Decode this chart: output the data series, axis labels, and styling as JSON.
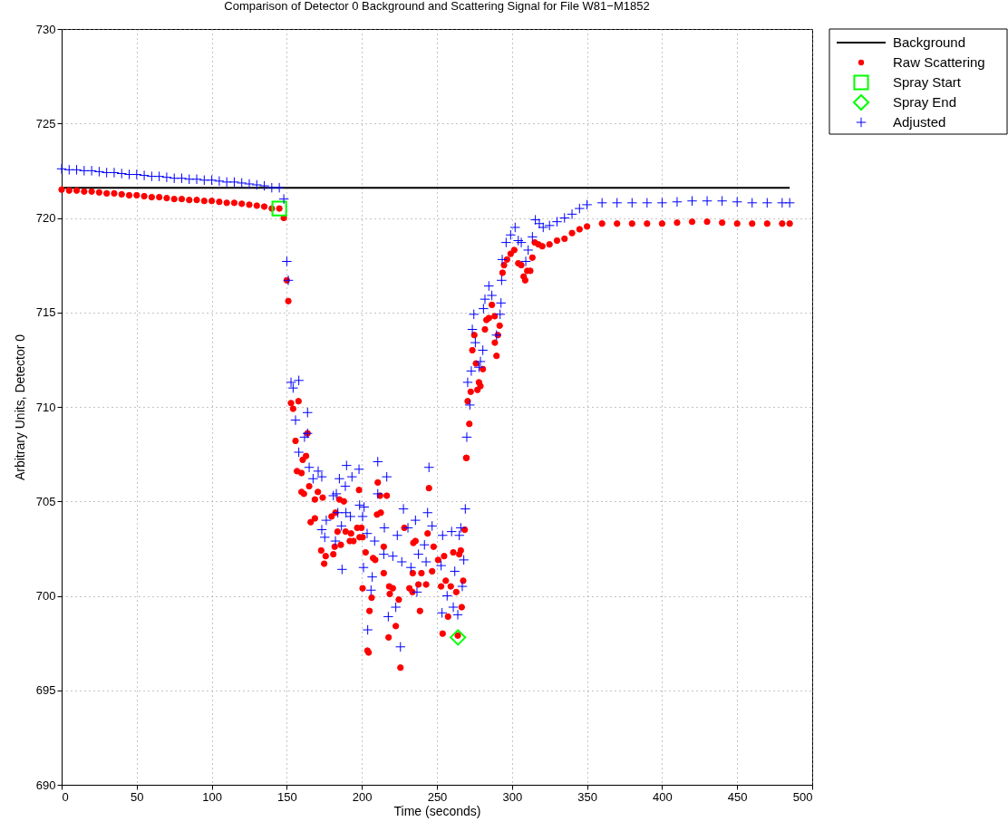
{
  "chart_data": {
    "type": "scatter",
    "title": "Comparison of Detector 0 Background and Scattering Signal for File W81−M1852",
    "xlabel": "Time (seconds)",
    "ylabel": "Arbitrary Units, Detector 0",
    "xlim": [
      0,
      500
    ],
    "xticks": [
      0,
      50,
      100,
      150,
      200,
      250,
      300,
      350,
      400,
      450,
      500
    ],
    "ylim": [
      690,
      730
    ],
    "yticks": [
      690,
      695,
      700,
      705,
      710,
      715,
      720,
      725,
      730
    ],
    "grid": true,
    "legend": "top right",
    "series": [
      {
        "name": "Background",
        "type": "line",
        "color": "#000000",
        "marker": "none",
        "line_style": "solid",
        "x": [
          0,
          485
        ],
        "values": [
          721.6,
          721.6
        ]
      },
      {
        "name": "Raw Scattering",
        "color": "#ff0000",
        "marker": "circle",
        "x": [
          0,
          5,
          10,
          15,
          20,
          25,
          30,
          35,
          40,
          45,
          50,
          55,
          60,
          65,
          70,
          75,
          80,
          85,
          90,
          95,
          100,
          105,
          110,
          115,
          120,
          125,
          130,
          135,
          140,
          145,
          148,
          150,
          151,
          152.8,
          157.8,
          154.2,
          155.8,
          163.8,
          162.8,
          160.6,
          156.8,
          159.8,
          164.9,
          159.8,
          161.4,
          170.7,
          168.7,
          173.9,
          165.9,
          168.7,
          172.9,
          175.9,
          174.9,
          181.0,
          181.9,
          186.0,
          183.8,
          189.2,
          192.0,
          194.4,
          192.8,
          196.9,
          198.5,
          200.5,
          199.7,
          198.1,
          185.0,
          188.0,
          179.8,
          182.4,
          210.6,
          212.1,
          216.6,
          210.1,
          212.6,
          202.5,
          207.5,
          208.9,
          214.6,
          200.5,
          206.5,
          205.1,
          203.7,
          204.5,
          214.6,
          218.2,
          220.6,
          218.6,
          222.6,
          217.8,
          224.6,
          225.7,
          228.3,
          234.3,
          235.7,
          233.9,
          231.7,
          233.7,
          237.7,
          239.7,
          242.8,
          238.7,
          244.7,
          243.8,
          246.8,
          247.8,
          250.8,
          252.8,
          254.8,
          255.9,
          259.2,
          257.4,
          253.8,
          260.9,
          262.9,
          266.5,
          264.9,
          267.5,
          265.9,
          268.5,
          263.9,
          269.7,
          271.6,
          270.5,
          272.5,
          277.0,
          278.0,
          279.0,
          280.6,
          269.5,
          276.0,
          273.6,
          274.9,
          289.7,
          288.6,
          290.6,
          291.8,
          288.5,
          282.0,
          283.0,
          284.6,
          286.6,
          293.7,
          294.7,
          296.7,
          299.1,
          301.5,
          304.2,
          306.2,
          307.8,
          308.8,
          310.2,
          312.2,
          313.6,
          315.2,
          317.6,
          320.2,
          325,
          330,
          335,
          340,
          345,
          350,
          360,
          370,
          380,
          390,
          400,
          410,
          420,
          430,
          440,
          450,
          460,
          470,
          480,
          485
        ],
        "values": [
          721.5,
          721.45,
          721.45,
          721.4,
          721.4,
          721.35,
          721.3,
          721.3,
          721.25,
          721.2,
          721.2,
          721.15,
          721.1,
          721.1,
          721.05,
          721.0,
          721.0,
          720.95,
          720.95,
          720.9,
          720.9,
          720.85,
          720.8,
          720.8,
          720.75,
          720.7,
          720.65,
          720.6,
          720.5,
          720.5,
          720.0,
          716.7,
          715.6,
          710.2,
          710.3,
          709.9,
          708.2,
          708.6,
          707.4,
          707.2,
          706.6,
          706.5,
          705.8,
          705.5,
          705.4,
          705.5,
          705.1,
          705.2,
          703.9,
          704.1,
          702.4,
          702.1,
          701.7,
          702.2,
          702.6,
          702.7,
          703.4,
          703.4,
          702.9,
          702.9,
          703.3,
          703.6,
          703.1,
          703.1,
          703.6,
          705.6,
          705.1,
          705.0,
          704.2,
          704.4,
          706.0,
          705.3,
          705.3,
          704.3,
          704.4,
          702.3,
          702.0,
          701.9,
          702.6,
          700.4,
          699.9,
          699.2,
          697.1,
          697.0,
          701.2,
          700.5,
          700.4,
          700.1,
          698.4,
          697.8,
          699.8,
          696.2,
          703.6,
          702.8,
          702.9,
          701.2,
          700.4,
          700.2,
          700.6,
          701.2,
          700.6,
          699.2,
          705.7,
          703.3,
          701.3,
          702.6,
          701.9,
          700.5,
          702.1,
          700.8,
          700.5,
          698.9,
          698.0,
          702.3,
          700.2,
          699.4,
          702.2,
          700.8,
          702.4,
          703.5,
          697.9,
          707.3,
          709.1,
          710.3,
          710.8,
          710.9,
          711.3,
          711.1,
          712.0,
          707.3,
          712.3,
          713.0,
          713.8,
          712.7,
          713.4,
          713.8,
          714.3,
          714.8,
          714.1,
          714.6,
          714.7,
          715.4,
          717.1,
          717.5,
          717.8,
          718.1,
          718.3,
          717.6,
          717.5,
          716.9,
          716.7,
          717.2,
          717.2,
          717.9,
          718.7,
          718.6,
          718.5,
          718.6,
          718.8,
          718.9,
          719.2,
          719.4,
          719.55,
          719.7,
          719.7,
          719.7,
          719.7,
          719.7,
          719.75,
          719.8,
          719.8,
          719.75,
          719.7,
          719.7,
          719.7,
          719.7,
          719.7
        ]
      },
      {
        "name": "Spray Start",
        "color": "#00ff00",
        "marker": "square",
        "x": [
          145
        ],
        "values": [
          720.5
        ]
      },
      {
        "name": "Spray End",
        "color": "#00ff00",
        "marker": "diamond",
        "x": [
          264
        ],
        "values": [
          697.8
        ]
      },
      {
        "name": "Adjusted",
        "color": "#0000ff",
        "marker": "cross",
        "x": [
          0,
          5,
          10,
          15,
          20,
          25,
          30,
          35,
          40,
          45,
          50,
          55,
          60,
          65,
          70,
          75,
          80,
          85,
          90,
          95,
          100,
          105,
          110,
          115,
          120,
          125,
          130,
          135,
          140,
          145,
          148,
          150,
          151,
          152.8,
          158.0,
          154.2,
          163.8,
          155.8,
          161.8,
          163.8,
          158.0,
          164.9,
          170.9,
          167.5,
          173.3,
          189.8,
          198.1,
          210.6,
          216.6,
          185.0,
          189.0,
          183.0,
          193.4,
          210.6,
          181.0,
          198.5,
          201.5,
          189.4,
          184.0,
          176.3,
          173.3,
          175.3,
          186.4,
          182.4,
          200.5,
          192.4,
          203.5,
          208.5,
          215.0,
          227.7,
          243.8,
          244.7,
          268.9,
          223.6,
          230.7,
          235.7,
          246.8,
          253.8,
          259.8,
          264.9,
          265.9,
          186.8,
          201.1,
          206.9,
          206.1,
          214.6,
          220.6,
          226.6,
          232.7,
          237.7,
          241.7,
          252.8,
          261.9,
          267.9,
          266.9,
          256.8,
          260.9,
          253.4,
          263.9,
          217.6,
          222.6,
          203.9,
          225.7,
          236.7,
          242.8,
          269.9,
          271.9,
          270.5,
          272.9,
          278.0,
          279.0,
          280.6,
          275.6,
          273.6,
          274.6,
          281.0,
          282.0,
          284.6,
          286.6,
          289.7,
          292.1,
          292.7,
          293.1,
          293.5,
          296.1,
          299.1,
          302.1,
          304.2,
          306.2,
          309.2,
          310.8,
          313.6,
          315.6,
          318.2,
          320.8,
          325,
          330,
          335,
          340,
          345,
          350,
          360,
          370,
          380,
          390,
          400,
          410,
          420,
          430,
          440,
          450,
          460,
          470,
          480,
          485
        ],
        "values": [
          722.6,
          722.55,
          722.55,
          722.5,
          722.5,
          722.45,
          722.4,
          722.4,
          722.35,
          722.3,
          722.3,
          722.25,
          722.2,
          722.2,
          722.15,
          722.1,
          722.1,
          722.05,
          722.05,
          722.0,
          722.0,
          721.95,
          721.9,
          721.9,
          721.85,
          721.8,
          721.75,
          721.7,
          721.6,
          721.6,
          721.0,
          717.7,
          716.7,
          711.3,
          711.4,
          711.0,
          709.7,
          709.3,
          708.4,
          708.6,
          707.6,
          706.8,
          706.6,
          706.2,
          706.3,
          706.9,
          706.7,
          707.1,
          706.3,
          706.2,
          705.8,
          705.4,
          706.3,
          705.4,
          705.3,
          704.8,
          704.7,
          704.4,
          704.4,
          704.0,
          703.5,
          703.1,
          703.7,
          702.9,
          704.2,
          704.2,
          703.3,
          702.9,
          703.6,
          704.6,
          704.4,
          706.8,
          704.6,
          703.2,
          703.6,
          704.0,
          703.7,
          703.2,
          703.4,
          703.2,
          703.6,
          701.4,
          701.5,
          701.0,
          700.3,
          702.2,
          702.1,
          701.8,
          701.5,
          702.2,
          702.7,
          701.6,
          701.3,
          701.9,
          700.5,
          700.0,
          699.4,
          699.1,
          699.0,
          698.9,
          699.4,
          698.2,
          697.3,
          700.2,
          701.8,
          708.4,
          710.1,
          711.3,
          711.9,
          712.1,
          712.4,
          713.0,
          713.4,
          714.1,
          714.9,
          715.2,
          715.7,
          716.4,
          715.9,
          713.8,
          714.9,
          715.5,
          716.7,
          717.8,
          718.7,
          719.1,
          719.5,
          718.8,
          718.7,
          717.7,
          718.3,
          719.0,
          719.9,
          719.7,
          719.5,
          719.6,
          719.8,
          720.0,
          720.2,
          720.5,
          720.7,
          720.8,
          720.8,
          720.8,
          720.8,
          720.8,
          720.85,
          720.9,
          720.9,
          720.9,
          720.85,
          720.8,
          720.8,
          720.8,
          720.8
        ]
      }
    ]
  }
}
